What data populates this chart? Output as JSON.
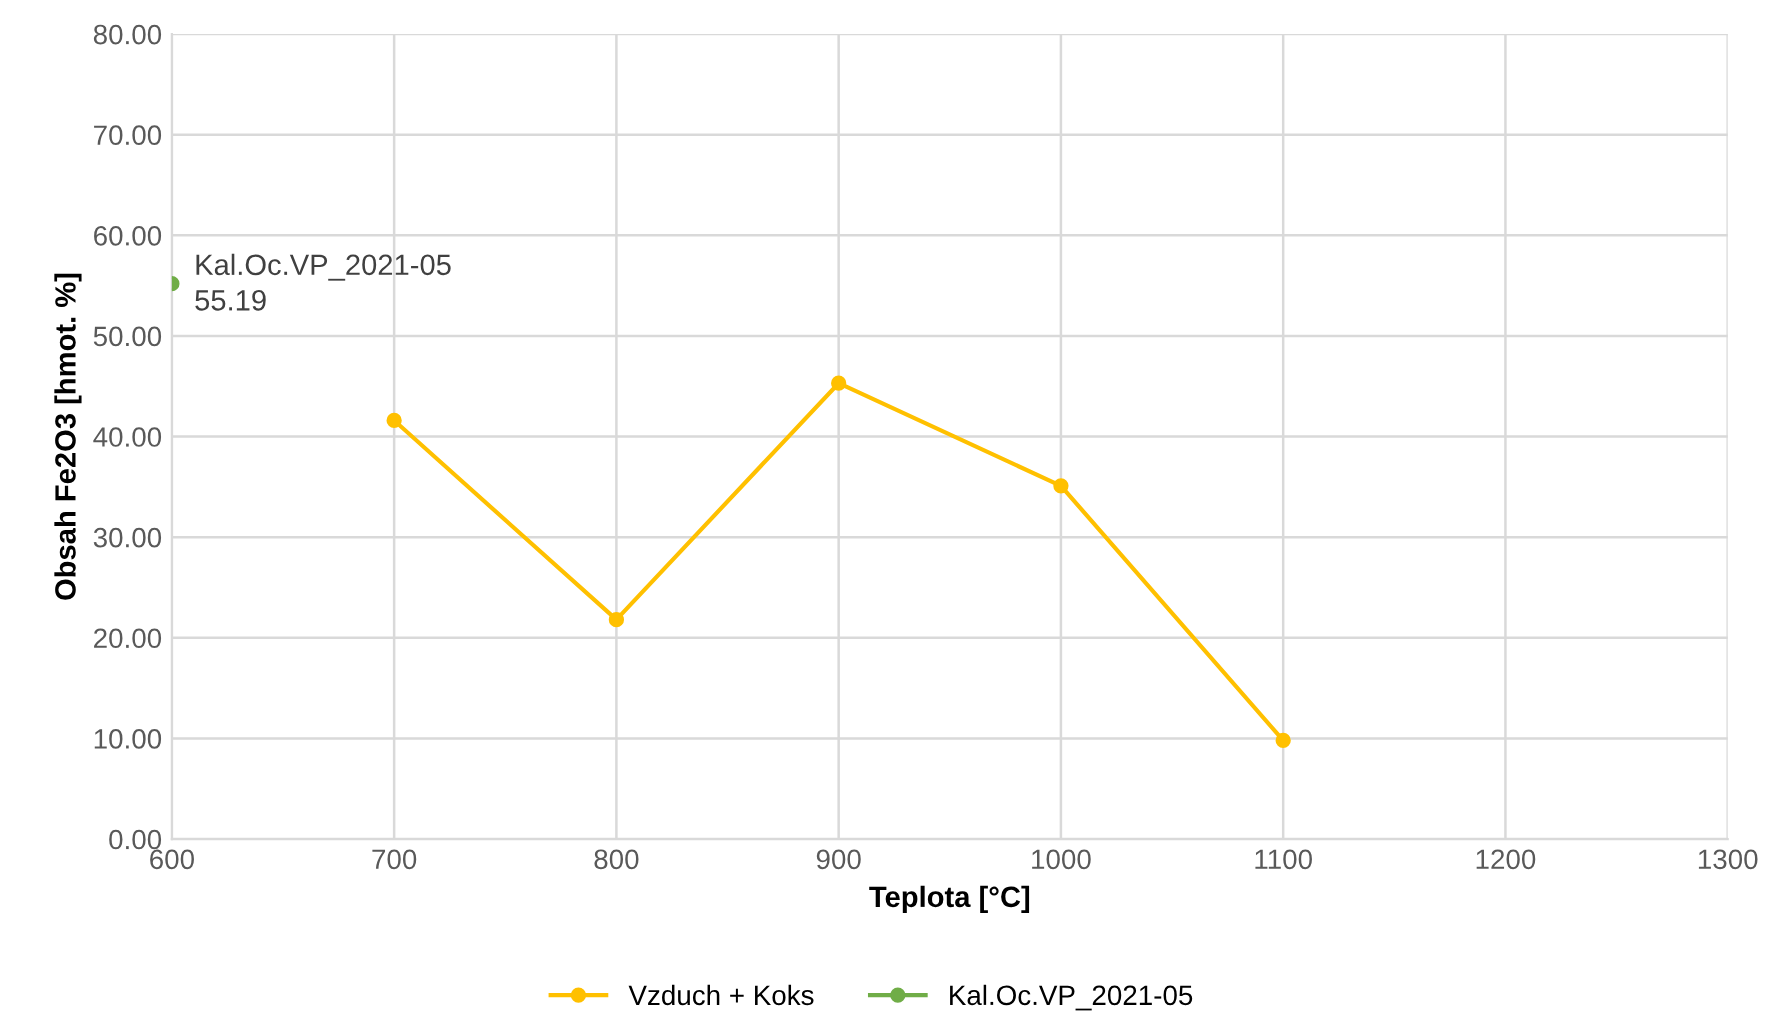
{
  "chart_data": {
    "type": "line",
    "xlabel": "Teplota [°C]",
    "ylabel": "Obsah Fe2O3 [hmot. %]",
    "xlim": [
      600,
      1300
    ],
    "xticks": [
      600,
      700,
      800,
      900,
      1000,
      1100,
      1200,
      1300
    ],
    "ylim": [
      0,
      80
    ],
    "yticks": [
      {
        "value": 0,
        "label": "0.00"
      },
      {
        "value": 10,
        "label": "10.00"
      },
      {
        "value": 20,
        "label": "20.00"
      },
      {
        "value": 30,
        "label": "30.00"
      },
      {
        "value": 40,
        "label": "40.00"
      },
      {
        "value": 50,
        "label": "50.00"
      },
      {
        "value": 60,
        "label": "60.00"
      },
      {
        "value": 70,
        "label": "70.00"
      },
      {
        "value": 80,
        "label": "80.00"
      }
    ],
    "grid": true,
    "legend": "bottom",
    "marker": "circle",
    "line_style": "solid",
    "series": [
      {
        "name": "Vzduch + Koks",
        "color": "#ffc000",
        "x": [
          700,
          800,
          900,
          1000,
          1100
        ],
        "values": [
          41.6,
          21.8,
          45.3,
          35.1,
          9.8
        ]
      },
      {
        "name": "Kal.Oc.VP_2021-05",
        "color": "#70ad47",
        "x": [
          600
        ],
        "values": [
          55.19
        ],
        "value_labels": [
          "55.19"
        ]
      }
    ],
    "annotations": [
      {
        "text": "Kal.Oc.VP_2021-05",
        "x": 600,
        "y": 55.19
      }
    ]
  }
}
